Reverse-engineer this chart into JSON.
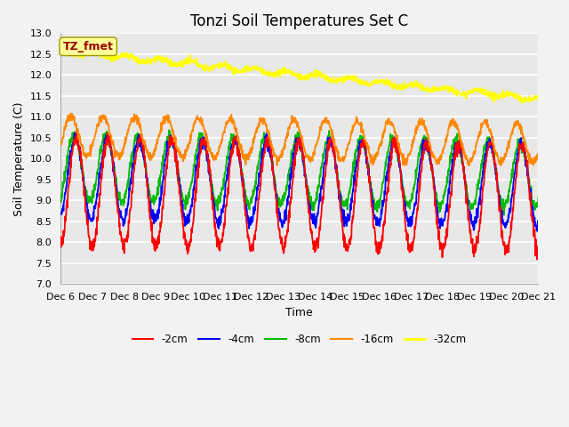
{
  "title": "Tonzi Soil Temperatures Set C",
  "xlabel": "Time",
  "ylabel": "Soil Temperature (C)",
  "ylim": [
    7.0,
    13.0
  ],
  "yticks": [
    7.0,
    7.5,
    8.0,
    8.5,
    9.0,
    9.5,
    10.0,
    10.5,
    11.0,
    11.5,
    12.0,
    12.5,
    13.0
  ],
  "xtick_labels": [
    "Dec 6",
    "Dec 7",
    "Dec 8",
    "Dec 9",
    "Dec 10",
    "Dec 11",
    "Dec 12",
    "Dec 13",
    "Dec 14",
    "Dec 15",
    "Dec 16",
    "Dec 17",
    "Dec 18",
    "Dec 19",
    "Dec 20",
    "Dec 21"
  ],
  "colors": {
    "-2cm": "#ff0000",
    "-4cm": "#0000ff",
    "-8cm": "#00bb00",
    "-16cm": "#ff8800",
    "-32cm": "#ffff00"
  },
  "legend_labels": [
    "-2cm",
    "-4cm",
    "-8cm",
    "-16cm",
    "-32cm"
  ],
  "annotation_text": "TZ_fmet",
  "annotation_bg": "#ffff99",
  "annotation_fg": "#990000",
  "plot_bg": "#e8e8e8",
  "n_points": 1440,
  "days": 15,
  "title_fontsize": 12,
  "label_fontsize": 9,
  "tick_fontsize": 8
}
